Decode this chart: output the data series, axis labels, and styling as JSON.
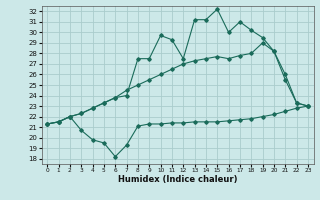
{
  "xlabel": "Humidex (Indice chaleur)",
  "bg_color": "#cce8e8",
  "grid_color": "#aacccc",
  "line_color": "#1a6b5a",
  "xlim": [
    -0.5,
    23.5
  ],
  "ylim": [
    17.5,
    32.5
  ],
  "xticks": [
    0,
    1,
    2,
    3,
    4,
    5,
    6,
    7,
    8,
    9,
    10,
    11,
    12,
    13,
    14,
    15,
    16,
    17,
    18,
    19,
    20,
    21,
    22,
    23
  ],
  "yticks": [
    18,
    19,
    20,
    21,
    22,
    23,
    24,
    25,
    26,
    27,
    28,
    29,
    30,
    31,
    32
  ],
  "line_min": [
    [
      0,
      21.3
    ],
    [
      1,
      21.5
    ],
    [
      2,
      22.0
    ],
    [
      3,
      20.7
    ],
    [
      4,
      19.8
    ],
    [
      5,
      19.5
    ],
    [
      6,
      18.2
    ],
    [
      7,
      19.3
    ],
    [
      8,
      21.1
    ],
    [
      9,
      21.3
    ],
    [
      10,
      21.3
    ],
    [
      11,
      21.4
    ],
    [
      12,
      21.4
    ],
    [
      13,
      21.5
    ],
    [
      14,
      21.5
    ],
    [
      15,
      21.5
    ],
    [
      16,
      21.6
    ],
    [
      17,
      21.7
    ],
    [
      18,
      21.8
    ],
    [
      19,
      22.0
    ],
    [
      20,
      22.2
    ],
    [
      21,
      22.5
    ],
    [
      22,
      22.8
    ],
    [
      23,
      23.0
    ]
  ],
  "line_max": [
    [
      0,
      21.3
    ],
    [
      1,
      21.5
    ],
    [
      2,
      22.0
    ],
    [
      3,
      22.3
    ],
    [
      8,
      27.5
    ],
    [
      9,
      27.5
    ],
    [
      10,
      29.7
    ],
    [
      11,
      29.3
    ],
    [
      12,
      27.5
    ],
    [
      13,
      31.2
    ],
    [
      14,
      31.2
    ],
    [
      15,
      32.2
    ],
    [
      16,
      30.0
    ],
    [
      17,
      31.0
    ],
    [
      18,
      30.2
    ],
    [
      19,
      29.5
    ],
    [
      20,
      28.2
    ],
    [
      21,
      25.5
    ],
    [
      22,
      23.3
    ],
    [
      23,
      23.0
    ]
  ],
  "line_mean": [
    [
      0,
      21.3
    ],
    [
      1,
      21.5
    ],
    [
      2,
      22.0
    ],
    [
      3,
      22.3
    ],
    [
      4,
      22.8
    ],
    [
      5,
      23.3
    ],
    [
      6,
      23.8
    ],
    [
      7,
      24.5
    ],
    [
      8,
      25.0
    ],
    [
      9,
      25.5
    ],
    [
      10,
      26.0
    ],
    [
      11,
      26.5
    ],
    [
      12,
      27.0
    ],
    [
      13,
      27.3
    ],
    [
      14,
      27.5
    ],
    [
      15,
      27.7
    ],
    [
      16,
      27.5
    ],
    [
      17,
      27.8
    ],
    [
      18,
      28.0
    ],
    [
      19,
      29.0
    ],
    [
      20,
      28.2
    ],
    [
      21,
      26.0
    ],
    [
      22,
      23.3
    ],
    [
      23,
      23.0
    ]
  ],
  "line_max_full": [
    [
      0,
      21.3
    ],
    [
      1,
      21.5
    ],
    [
      2,
      22.0
    ],
    [
      3,
      22.3
    ],
    [
      4,
      22.8
    ],
    [
      5,
      23.3
    ],
    [
      6,
      23.8
    ],
    [
      7,
      24.0
    ],
    [
      8,
      27.5
    ],
    [
      9,
      27.5
    ],
    [
      10,
      29.7
    ],
    [
      11,
      29.3
    ],
    [
      12,
      27.5
    ],
    [
      13,
      31.2
    ],
    [
      14,
      31.2
    ],
    [
      15,
      32.2
    ],
    [
      16,
      30.0
    ],
    [
      17,
      31.0
    ],
    [
      18,
      30.2
    ],
    [
      19,
      29.5
    ],
    [
      20,
      28.2
    ],
    [
      21,
      25.5
    ],
    [
      22,
      23.3
    ],
    [
      23,
      23.0
    ]
  ]
}
